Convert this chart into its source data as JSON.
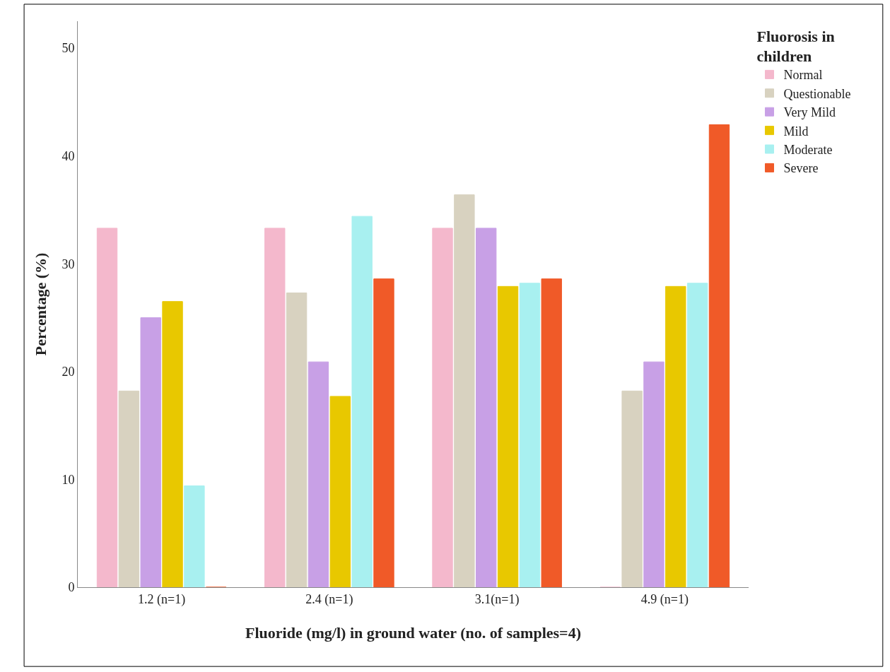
{
  "chart_data": {
    "type": "bar",
    "xlabel": "Fluoride (mg/l) in ground water (no. of samples=4)",
    "ylabel": "Percentage (%)",
    "legend_title": "Fluorosis in\nchildren",
    "categories": [
      "1.2 (n=1)",
      "2.4 (n=1)",
      "3.1(n=1)",
      "4.9 (n=1)"
    ],
    "series": [
      {
        "name": "Normal",
        "color": "#f4b8cc",
        "values": [
          33.3,
          33.3,
          33.3,
          0
        ]
      },
      {
        "name": "Questionable",
        "color": "#d8d2c0",
        "values": [
          18.2,
          27.3,
          36.4,
          18.2
        ]
      },
      {
        "name": "Very Mild",
        "color": "#c8a0e6",
        "values": [
          25.0,
          20.9,
          33.3,
          20.9
        ]
      },
      {
        "name": "Mild",
        "color": "#e8c800",
        "values": [
          26.5,
          17.7,
          27.9,
          27.9
        ]
      },
      {
        "name": "Moderate",
        "color": "#a8f0f0",
        "values": [
          9.4,
          34.4,
          28.2,
          28.2
        ]
      },
      {
        "name": "Severe",
        "color": "#f05a28",
        "values": [
          0,
          28.6,
          28.6,
          42.9
        ]
      }
    ],
    "ylim": [
      0,
      52.5
    ],
    "yticks": [
      0,
      10,
      20,
      30,
      40,
      50
    ],
    "legend": "top right"
  }
}
